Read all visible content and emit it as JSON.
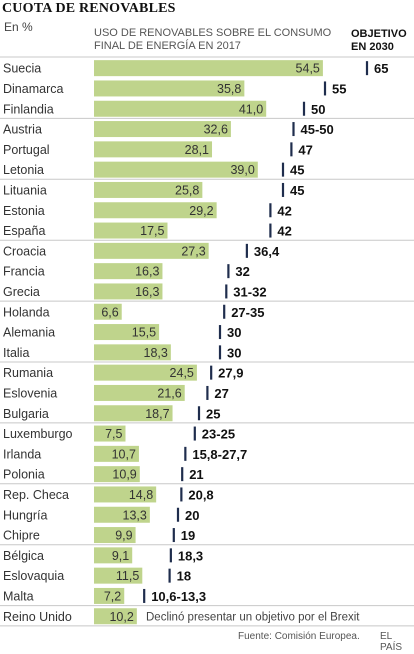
{
  "header": {
    "title": "CUOTA DE RENOVABLES",
    "unit": "En %",
    "subtitle": "USO DE RENOVABLES SOBRE EL CONSUMO FINAL DE ENERGÍA EN 2017",
    "objective_header": "OBJETIVO EN 2030"
  },
  "colors": {
    "bar": "#bfd48c",
    "target_tick": "#1f2d4d",
    "separator": "#c8c8c8"
  },
  "chart_data": {
    "type": "bar",
    "orientation": "horizontal",
    "title": "CUOTA DE RENOVABLES",
    "unit": "En %",
    "xlim": [
      0,
      65
    ],
    "categories": [
      "Suecia",
      "Dinamarca",
      "Finlandia",
      "Austria",
      "Portugal",
      "Letonia",
      "Lituania",
      "Estonia",
      "España",
      "Croacia",
      "Francia",
      "Grecia",
      "Holanda",
      "Alemania",
      "Italia",
      "Rumania",
      "Eslovenia",
      "Bulgaria",
      "Luxemburgo",
      "Irlanda",
      "Polonia",
      "Rep. Checa",
      "Hungría",
      "Chipre",
      "Bélgica",
      "Eslovaquia",
      "Malta",
      "Reino Unido"
    ],
    "series": [
      {
        "name": "USO DE RENOVABLES SOBRE EL CONSUMO FINAL DE ENERGÍA EN 2017",
        "values": [
          54.5,
          35.8,
          41.0,
          32.6,
          28.1,
          39.0,
          25.8,
          29.2,
          17.5,
          27.3,
          16.3,
          16.3,
          6.6,
          15.5,
          18.3,
          24.5,
          21.6,
          18.7,
          7.5,
          10.7,
          10.9,
          14.8,
          13.3,
          9.9,
          9.1,
          11.5,
          7.2,
          10.2
        ],
        "labels": [
          "54,5",
          "35,8",
          "41,0",
          "32,6",
          "28,1",
          "39,0",
          "25,8",
          "29,2",
          "17,5",
          "27,3",
          "16,3",
          "16,3",
          "6,6",
          "15,5",
          "18,3",
          "24,5",
          "21,6",
          "18,7",
          "7,5",
          "10,7",
          "10,9",
          "14,8",
          "13,3",
          "9,9",
          "9,1",
          "11,5",
          "7,2",
          "10,2"
        ]
      },
      {
        "name": "OBJETIVO EN 2030",
        "values": [
          65,
          55,
          50,
          47.5,
          47,
          45,
          45,
          42,
          42,
          36.4,
          32,
          31.5,
          31,
          30,
          30,
          27.9,
          27,
          25,
          24,
          21.75,
          21,
          20.8,
          20,
          19,
          18.3,
          18,
          11.95,
          null
        ],
        "labels": [
          "65",
          "55",
          "50",
          "45-50",
          "47",
          "45",
          "45",
          "42",
          "42",
          "36,4",
          "32",
          "31-32",
          "27-35",
          "30",
          "30",
          "27,9",
          "27",
          "25",
          "23-25",
          "15,8-27,7",
          "21",
          "20,8",
          "20",
          "19",
          "18,3",
          "18",
          "10,6-13,3",
          ""
        ]
      }
    ],
    "group_ends": [
      2,
      5,
      8,
      11,
      14,
      17,
      20,
      23,
      26,
      27
    ],
    "annotations": [
      "Declinó presentar un objetivo por el Brexit"
    ]
  },
  "footer": {
    "source": "Fuente: Comisión Europea.",
    "brand": "EL PAÍS"
  }
}
